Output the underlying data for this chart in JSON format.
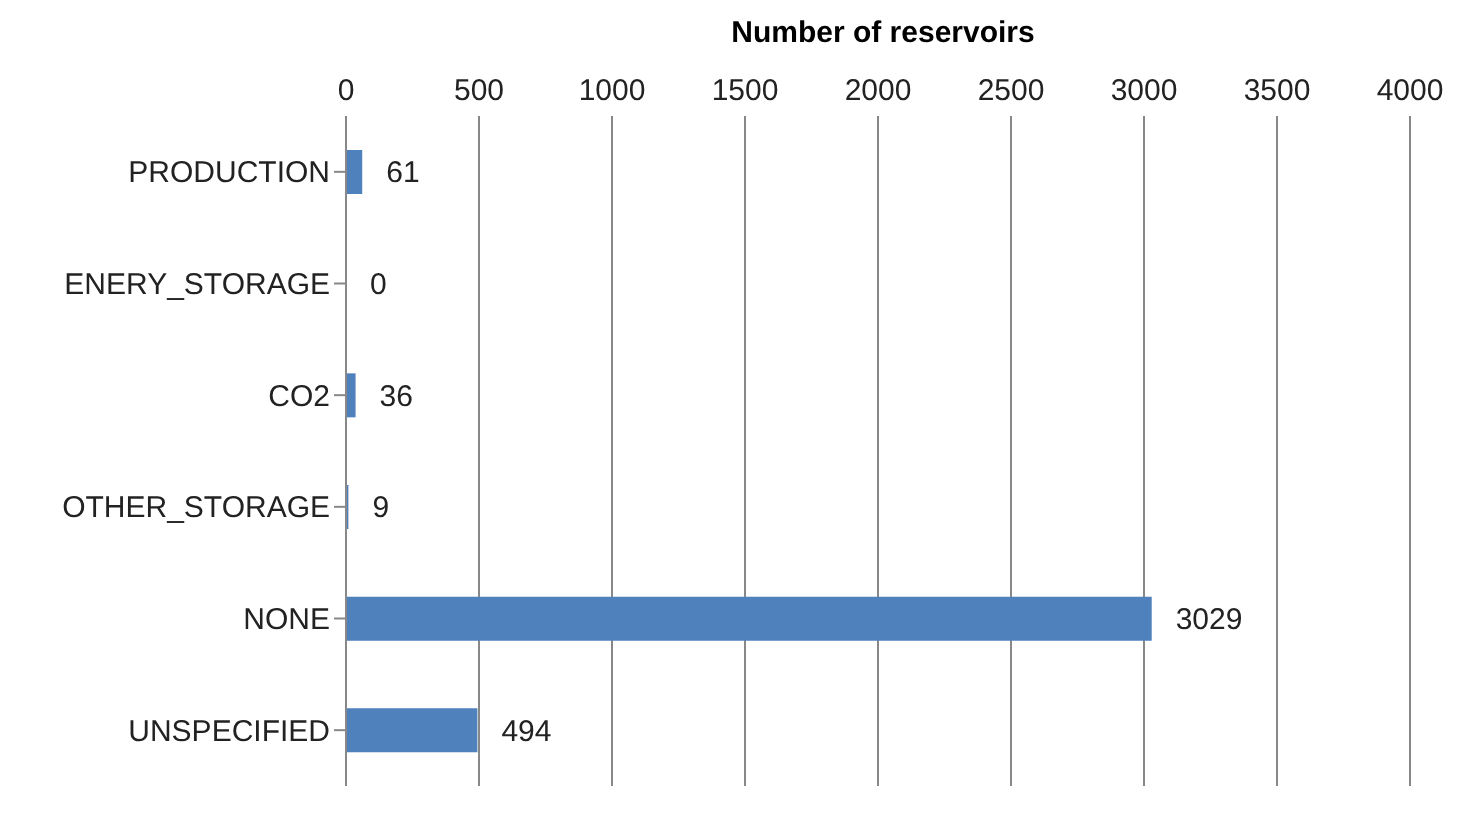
{
  "chart_data": {
    "type": "bar",
    "orientation": "horizontal",
    "xlabel": "Number of reservoirs",
    "categories": [
      "PRODUCTION",
      "ENERY_STORAGE",
      "CO2",
      "OTHER_STORAGE",
      "NONE",
      "UNSPECIFIED"
    ],
    "values": [
      61,
      0,
      36,
      9,
      3029,
      494
    ],
    "color": "#4f81bd",
    "xlim": [
      0,
      4000
    ],
    "xticks": [
      0,
      500,
      1000,
      1500,
      2000,
      2500,
      3000,
      3500,
      4000
    ],
    "grid": "x",
    "data_labels": true,
    "legend": false
  }
}
